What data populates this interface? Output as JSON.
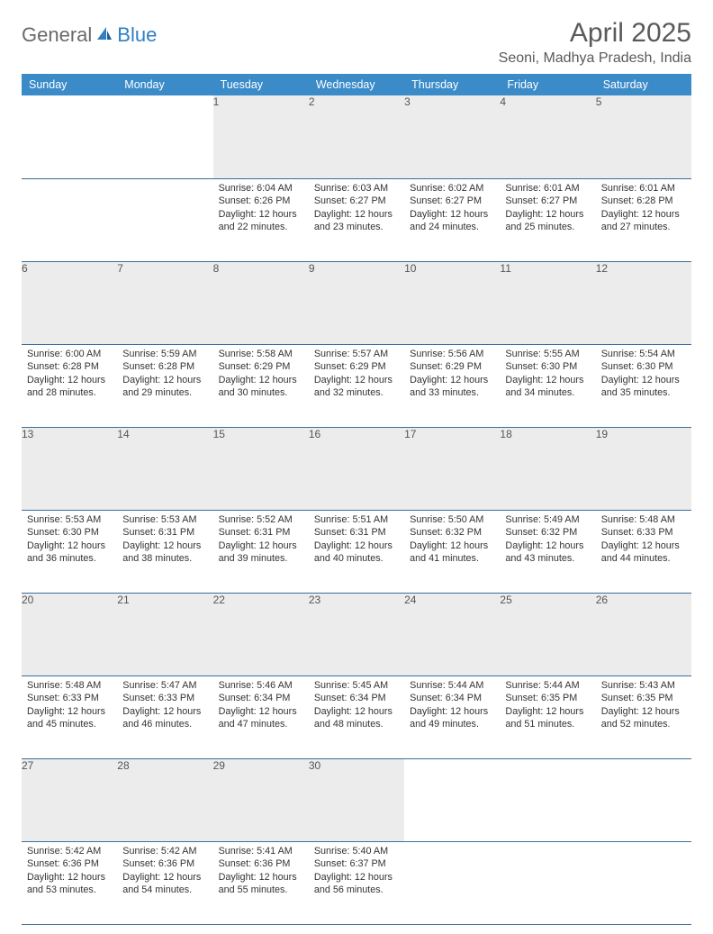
{
  "brand": {
    "part1": "General",
    "part2": "Blue"
  },
  "title": "April 2025",
  "location": "Seoni, Madhya Pradesh, India",
  "colors": {
    "header_bg": "#3b8bc9",
    "header_text": "#ffffff",
    "daynum_bg": "#ececec",
    "rule": "#3b6f9c",
    "brand_gray": "#6a6a6a",
    "brand_blue": "#2f7fc2",
    "body_text": "#333333"
  },
  "weekdays": [
    "Sunday",
    "Monday",
    "Tuesday",
    "Wednesday",
    "Thursday",
    "Friday",
    "Saturday"
  ],
  "weeks": [
    [
      null,
      null,
      {
        "n": "1",
        "sr": "6:04 AM",
        "ss": "6:26 PM",
        "dl": "12 hours and 22 minutes."
      },
      {
        "n": "2",
        "sr": "6:03 AM",
        "ss": "6:27 PM",
        "dl": "12 hours and 23 minutes."
      },
      {
        "n": "3",
        "sr": "6:02 AM",
        "ss": "6:27 PM",
        "dl": "12 hours and 24 minutes."
      },
      {
        "n": "4",
        "sr": "6:01 AM",
        "ss": "6:27 PM",
        "dl": "12 hours and 25 minutes."
      },
      {
        "n": "5",
        "sr": "6:01 AM",
        "ss": "6:28 PM",
        "dl": "12 hours and 27 minutes."
      }
    ],
    [
      {
        "n": "6",
        "sr": "6:00 AM",
        "ss": "6:28 PM",
        "dl": "12 hours and 28 minutes."
      },
      {
        "n": "7",
        "sr": "5:59 AM",
        "ss": "6:28 PM",
        "dl": "12 hours and 29 minutes."
      },
      {
        "n": "8",
        "sr": "5:58 AM",
        "ss": "6:29 PM",
        "dl": "12 hours and 30 minutes."
      },
      {
        "n": "9",
        "sr": "5:57 AM",
        "ss": "6:29 PM",
        "dl": "12 hours and 32 minutes."
      },
      {
        "n": "10",
        "sr": "5:56 AM",
        "ss": "6:29 PM",
        "dl": "12 hours and 33 minutes."
      },
      {
        "n": "11",
        "sr": "5:55 AM",
        "ss": "6:30 PM",
        "dl": "12 hours and 34 minutes."
      },
      {
        "n": "12",
        "sr": "5:54 AM",
        "ss": "6:30 PM",
        "dl": "12 hours and 35 minutes."
      }
    ],
    [
      {
        "n": "13",
        "sr": "5:53 AM",
        "ss": "6:30 PM",
        "dl": "12 hours and 36 minutes."
      },
      {
        "n": "14",
        "sr": "5:53 AM",
        "ss": "6:31 PM",
        "dl": "12 hours and 38 minutes."
      },
      {
        "n": "15",
        "sr": "5:52 AM",
        "ss": "6:31 PM",
        "dl": "12 hours and 39 minutes."
      },
      {
        "n": "16",
        "sr": "5:51 AM",
        "ss": "6:31 PM",
        "dl": "12 hours and 40 minutes."
      },
      {
        "n": "17",
        "sr": "5:50 AM",
        "ss": "6:32 PM",
        "dl": "12 hours and 41 minutes."
      },
      {
        "n": "18",
        "sr": "5:49 AM",
        "ss": "6:32 PM",
        "dl": "12 hours and 43 minutes."
      },
      {
        "n": "19",
        "sr": "5:48 AM",
        "ss": "6:33 PM",
        "dl": "12 hours and 44 minutes."
      }
    ],
    [
      {
        "n": "20",
        "sr": "5:48 AM",
        "ss": "6:33 PM",
        "dl": "12 hours and 45 minutes."
      },
      {
        "n": "21",
        "sr": "5:47 AM",
        "ss": "6:33 PM",
        "dl": "12 hours and 46 minutes."
      },
      {
        "n": "22",
        "sr": "5:46 AM",
        "ss": "6:34 PM",
        "dl": "12 hours and 47 minutes."
      },
      {
        "n": "23",
        "sr": "5:45 AM",
        "ss": "6:34 PM",
        "dl": "12 hours and 48 minutes."
      },
      {
        "n": "24",
        "sr": "5:44 AM",
        "ss": "6:34 PM",
        "dl": "12 hours and 49 minutes."
      },
      {
        "n": "25",
        "sr": "5:44 AM",
        "ss": "6:35 PM",
        "dl": "12 hours and 51 minutes."
      },
      {
        "n": "26",
        "sr": "5:43 AM",
        "ss": "6:35 PM",
        "dl": "12 hours and 52 minutes."
      }
    ],
    [
      {
        "n": "27",
        "sr": "5:42 AM",
        "ss": "6:36 PM",
        "dl": "12 hours and 53 minutes."
      },
      {
        "n": "28",
        "sr": "5:42 AM",
        "ss": "6:36 PM",
        "dl": "12 hours and 54 minutes."
      },
      {
        "n": "29",
        "sr": "5:41 AM",
        "ss": "6:36 PM",
        "dl": "12 hours and 55 minutes."
      },
      {
        "n": "30",
        "sr": "5:40 AM",
        "ss": "6:37 PM",
        "dl": "12 hours and 56 minutes."
      },
      null,
      null,
      null
    ]
  ],
  "labels": {
    "sunrise": "Sunrise:",
    "sunset": "Sunset:",
    "daylight": "Daylight:"
  }
}
